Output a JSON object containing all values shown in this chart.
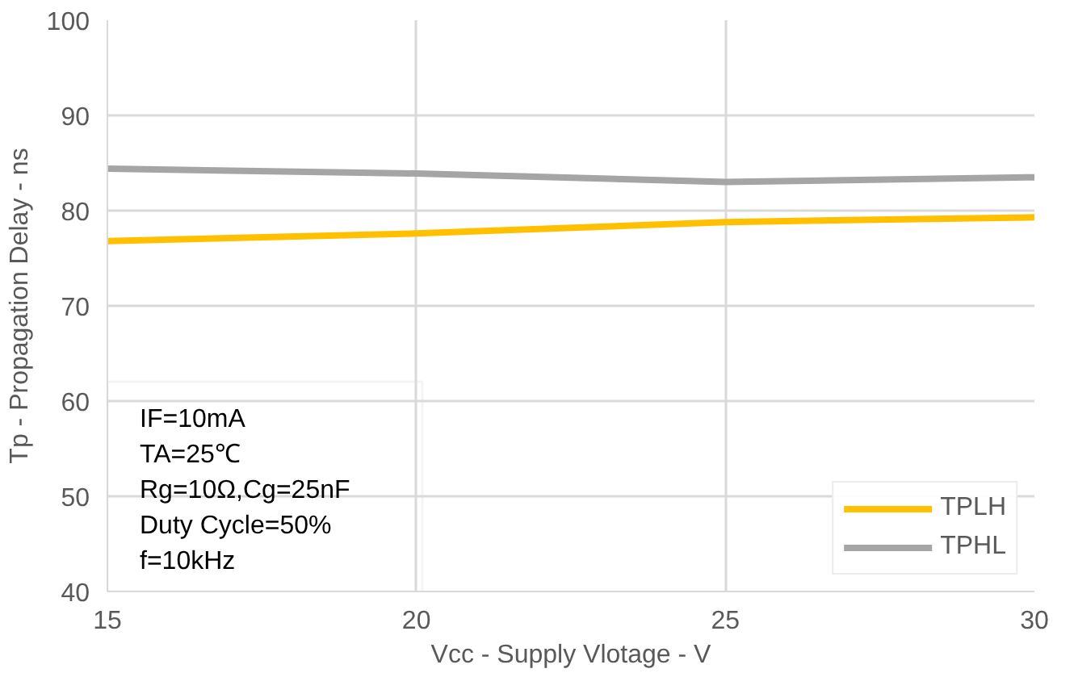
{
  "chart_data": {
    "type": "line",
    "xlabel": "Vcc - Supply Vlotage - V",
    "ylabel": "Tp - Propagation Delay - ns",
    "x": [
      15,
      20,
      25,
      30
    ],
    "series": [
      {
        "name": "TPLH",
        "color": "#ffc000",
        "values": [
          76.8,
          77.6,
          78.8,
          79.3
        ]
      },
      {
        "name": "TPHL",
        "color": "#a5a5a5",
        "values": [
          84.4,
          83.9,
          83.0,
          83.5
        ]
      }
    ],
    "xlim": [
      15,
      30
    ],
    "xticks": [
      15,
      20,
      25,
      30
    ],
    "ylim": [
      40,
      100
    ],
    "yticks": [
      40,
      50,
      60,
      70,
      80,
      90,
      100
    ],
    "grid": true,
    "legend": "bottom right",
    "marker": "none",
    "line_style": "solid",
    "annotations": [
      "IF=10mA",
      "TA=25℃",
      "Rg=10Ω,Cg=25nF",
      "Duty Cycle=50%",
      "f=10kHz"
    ]
  }
}
